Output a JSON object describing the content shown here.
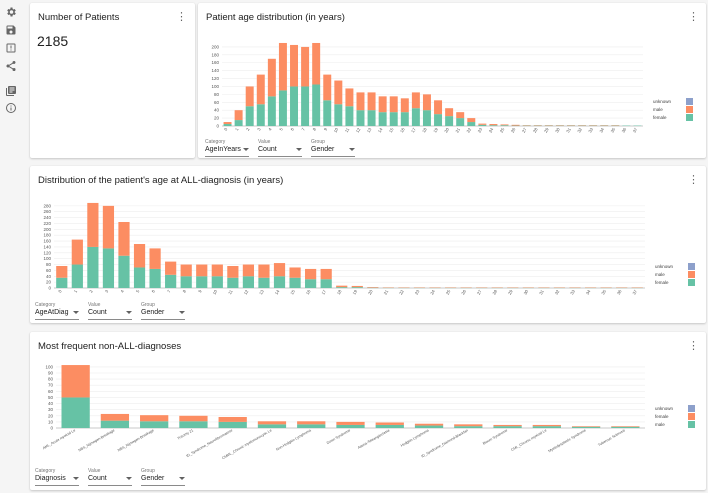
{
  "sidebar": {
    "icons": [
      "gear-icon",
      "save-icon",
      "upload-icon",
      "share-icon",
      "library-icon",
      "info-icon"
    ]
  },
  "colors": {
    "female": "#66c2a5",
    "male": "#fc8d62",
    "unknown": "#8da0cb"
  },
  "patients_card": {
    "title": "Number of Patients",
    "value": "2185"
  },
  "age_card": {
    "title": "Patient age distribution (in years)",
    "controls": [
      {
        "label": "Category",
        "value": "AgeInYears"
      },
      {
        "label": "Value",
        "value": "Count"
      },
      {
        "label": "Group",
        "value": "Gender"
      }
    ],
    "legend": [
      "unknown",
      "male",
      "female"
    ]
  },
  "diag_age_card": {
    "title": "Distribution of the patient's age at ALL-diagnosis (in years)",
    "controls": [
      {
        "label": "Category",
        "value": "AgeAtDiag"
      },
      {
        "label": "Value",
        "value": "Count"
      },
      {
        "label": "Group",
        "value": "Gender"
      }
    ],
    "legend": [
      "unknown",
      "male",
      "female"
    ]
  },
  "nonall_card": {
    "title": "Most frequent non-ALL-diagnoses",
    "controls": [
      {
        "label": "Category",
        "value": "Diagnosis"
      },
      {
        "label": "Value",
        "value": "Count"
      },
      {
        "label": "Group",
        "value": "Gender"
      }
    ],
    "legend": [
      "unknown",
      "female",
      "male"
    ]
  },
  "chart_data": [
    {
      "type": "bar",
      "stacked": true,
      "title": "Patient age distribution (in years)",
      "categories": [
        "0",
        "1",
        "2",
        "3",
        "4",
        "5",
        "6",
        "7",
        "8",
        "9",
        "10",
        "11",
        "12",
        "13",
        "14",
        "15",
        "16",
        "17",
        "18",
        "19",
        "20",
        "21",
        "22",
        "23",
        "24",
        "25",
        "26",
        "27",
        "28",
        "29",
        "30",
        "31",
        "32",
        "33",
        "34",
        "35",
        "36",
        "37"
      ],
      "series": [
        {
          "name": "female",
          "values": [
            5,
            15,
            50,
            55,
            75,
            90,
            100,
            100,
            105,
            65,
            55,
            50,
            40,
            40,
            35,
            35,
            35,
            45,
            40,
            30,
            25,
            20,
            10,
            3,
            2,
            2,
            1,
            1,
            1,
            1,
            1,
            1,
            1,
            1,
            1,
            1,
            1,
            1
          ]
        },
        {
          "name": "male",
          "values": [
            5,
            25,
            50,
            75,
            95,
            120,
            105,
            100,
            105,
            65,
            60,
            45,
            45,
            45,
            40,
            40,
            35,
            40,
            40,
            35,
            20,
            15,
            10,
            3,
            3,
            2,
            2,
            1,
            1,
            1,
            1,
            1,
            1,
            1,
            1,
            1,
            0,
            0
          ]
        },
        {
          "name": "unknown",
          "values": [
            0,
            0,
            0,
            0,
            0,
            0,
            0,
            0,
            0,
            0,
            0,
            0,
            0,
            0,
            0,
            0,
            0,
            0,
            0,
            0,
            0,
            0,
            0,
            0,
            0,
            0,
            0,
            0,
            0,
            0,
            0,
            0,
            0,
            0,
            0,
            0,
            0,
            0
          ]
        }
      ],
      "yticks": [
        0,
        20,
        40,
        60,
        80,
        100,
        120,
        140,
        160,
        180,
        200
      ],
      "ylim": [
        0,
        215
      ]
    },
    {
      "type": "bar",
      "stacked": true,
      "title": "Distribution of the patient's age at ALL-diagnosis (in years)",
      "categories": [
        "0",
        "1",
        "2",
        "3",
        "4",
        "5",
        "6",
        "7",
        "8",
        "9",
        "10",
        "11",
        "12",
        "13",
        "14",
        "15",
        "16",
        "17",
        "18",
        "19",
        "20",
        "21",
        "22",
        "23",
        "24",
        "25",
        "26",
        "27",
        "28",
        "29",
        "30",
        "31",
        "32",
        "33",
        "34",
        "35",
        "36",
        "37"
      ],
      "series": [
        {
          "name": "female",
          "values": [
            35,
            80,
            140,
            135,
            110,
            70,
            65,
            45,
            40,
            40,
            40,
            35,
            40,
            35,
            40,
            35,
            30,
            30,
            3,
            3,
            1,
            1,
            1,
            1,
            1,
            1,
            1,
            1,
            1,
            1,
            1,
            1,
            1,
            1,
            1,
            1,
            1,
            1
          ]
        },
        {
          "name": "male",
          "values": [
            40,
            85,
            150,
            145,
            115,
            80,
            70,
            45,
            40,
            40,
            40,
            40,
            40,
            45,
            45,
            35,
            35,
            35,
            5,
            4,
            2,
            1,
            1,
            1,
            1,
            1,
            1,
            1,
            1,
            1,
            1,
            1,
            1,
            1,
            1,
            1,
            1,
            1
          ]
        },
        {
          "name": "unknown",
          "values": [
            0,
            0,
            0,
            0,
            0,
            0,
            0,
            0,
            0,
            0,
            0,
            0,
            0,
            0,
            0,
            0,
            0,
            0,
            0,
            0,
            0,
            0,
            0,
            0,
            0,
            0,
            0,
            0,
            0,
            0,
            0,
            0,
            0,
            0,
            0,
            0,
            0,
            0
          ]
        }
      ],
      "yticks": [
        0,
        20,
        40,
        60,
        80,
        100,
        120,
        140,
        160,
        180,
        200,
        220,
        240,
        260,
        280
      ],
      "ylim": [
        0,
        300
      ]
    },
    {
      "type": "bar",
      "stacked": true,
      "title": "Most frequent non-ALL-diagnoses",
      "categories": [
        "AML_Acute myeloid Le",
        "NBS_Nijmegen-Breakage",
        "NBS_Nijmegen-Breakage",
        "Trisomy 21",
        "ID_Syndrome_Neurofibromatose",
        "CMML_Chronic myelomonocytic Le",
        "Non-Hodgkin Lymphoma",
        "Down Syndrome",
        "Ataxia-Teleangiectasia",
        "Hodgkin Lymphoma",
        "ID_Syndrome_Diamond-Blackfan",
        "Bloom Syndrome",
        "CML_Chronic myeloid Le",
        "Myelodysplastic Syndrome",
        "Tuberous Sclerosis"
      ],
      "series": [
        {
          "name": "male",
          "values": [
            50,
            12,
            11,
            11,
            10,
            6,
            6,
            5,
            5,
            4,
            3,
            3,
            3,
            2,
            2
          ]
        },
        {
          "name": "female",
          "values": [
            53,
            11,
            10,
            9,
            8,
            5,
            5,
            5,
            4,
            3,
            3,
            2,
            2,
            1,
            1
          ]
        },
        {
          "name": "unknown",
          "values": [
            0,
            0,
            0,
            0,
            0,
            0,
            0,
            0,
            0,
            0,
            0,
            0,
            0,
            0,
            0
          ]
        }
      ],
      "yticks": [
        0,
        10,
        20,
        30,
        40,
        50,
        60,
        70,
        80,
        90,
        100
      ],
      "ylim": [
        0,
        108
      ]
    }
  ]
}
